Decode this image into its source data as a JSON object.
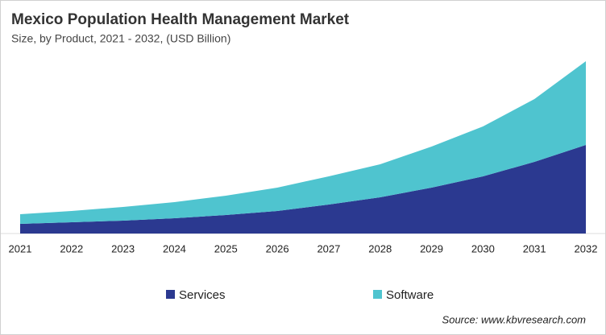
{
  "chart_data": {
    "type": "stacked-area",
    "title": "Mexico Population Health Management Market",
    "subtitle": "Size, by Product, 2021 - 2032, (USD Billion)",
    "categories": [
      "2021",
      "2022",
      "2023",
      "2024",
      "2025",
      "2026",
      "2027",
      "2028",
      "2029",
      "2030",
      "2031",
      "2032"
    ],
    "series": [
      {
        "name": "Services",
        "color": "#2b3990",
        "values": [
          0.12,
          0.14,
          0.16,
          0.19,
          0.23,
          0.28,
          0.36,
          0.45,
          0.57,
          0.71,
          0.89,
          1.1
        ]
      },
      {
        "name": "Software",
        "color": "#4fc4cf",
        "values": [
          0.12,
          0.14,
          0.17,
          0.2,
          0.24,
          0.29,
          0.35,
          0.41,
          0.51,
          0.62,
          0.78,
          1.04
        ]
      }
    ],
    "source": "Source: www.kbvresearch.com"
  }
}
